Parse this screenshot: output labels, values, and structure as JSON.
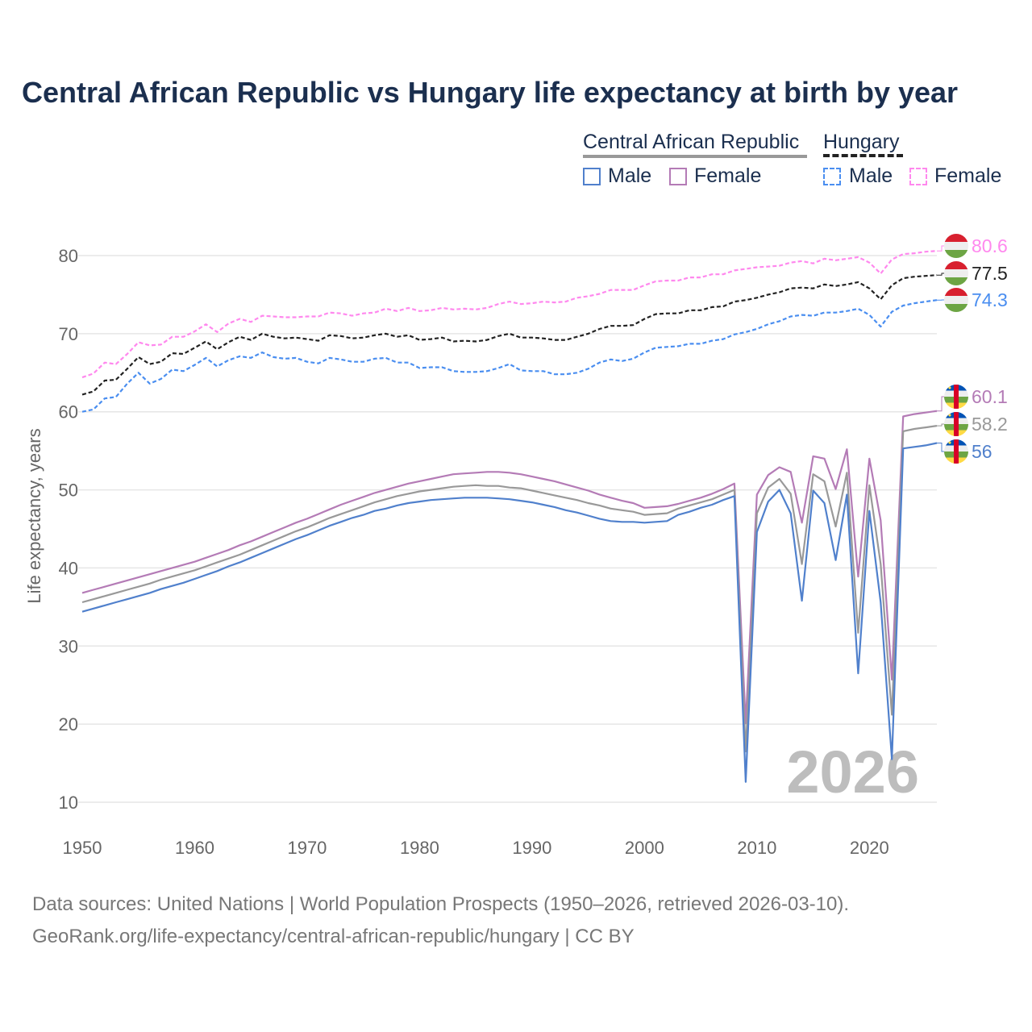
{
  "title": "Central African Republic vs Hungary life expectancy at birth by year",
  "legend": {
    "group1": "Central African Republic",
    "group2": "Hungary",
    "male": "Male",
    "female": "Female"
  },
  "footer": {
    "line1": "Data sources: United Nations | World Population Prospects (1950–2026, retrieved 2026-03-10).",
    "line2": "GeoRank.org/life-expectancy/central-african-republic/hungary | CC BY"
  },
  "colors": {
    "car_male": "#5080cc",
    "car_female": "#b47bb6",
    "car_total": "#999999",
    "hun_male": "#4a8ef0",
    "hun_female": "#ff88ee",
    "hun_total": "#222222",
    "title": "#1b2f4f"
  },
  "chart_data": {
    "type": "line",
    "title": "Central African Republic vs Hungary life expectancy at birth by year",
    "xlabel": "",
    "ylabel": "Life expectancy, years",
    "xlim": [
      1950,
      2026
    ],
    "ylim": [
      10,
      80
    ],
    "x_ticks": [
      1950,
      1960,
      1970,
      1980,
      1990,
      2000,
      2010,
      2020
    ],
    "y_ticks": [
      10,
      20,
      30,
      40,
      50,
      60,
      70,
      80
    ],
    "grid": true,
    "watermark": "2026",
    "x_start": 1950,
    "series": [
      {
        "name": "Hungary Female",
        "country": "Hungary",
        "style": "dashed",
        "colorKey": "hun_female",
        "end_label": "80.6",
        "values": [
          64.4,
          64.9,
          66.3,
          66.1,
          67.4,
          68.9,
          68.5,
          68.6,
          69.6,
          69.6,
          70.3,
          71.2,
          70.2,
          71.3,
          71.9,
          71.5,
          72.3,
          72.2,
          72.1,
          72.1,
          72.2,
          72.2,
          72.7,
          72.6,
          72.3,
          72.6,
          72.7,
          73.2,
          72.9,
          73.3,
          72.9,
          73.0,
          73.3,
          73.1,
          73.2,
          73.1,
          73.3,
          73.8,
          74.1,
          73.8,
          73.9,
          74.1,
          74.0,
          74.1,
          74.6,
          74.8,
          75.1,
          75.6,
          75.6,
          75.6,
          76.2,
          76.7,
          76.8,
          76.8,
          77.2,
          77.2,
          77.6,
          77.6,
          78.1,
          78.3,
          78.5,
          78.6,
          78.7,
          79.1,
          79.3,
          79.0,
          79.6,
          79.4,
          79.6,
          79.8,
          79.1,
          77.7,
          79.5,
          80.2,
          80.3,
          80.5,
          80.6
        ]
      },
      {
        "name": "Hungary Total",
        "country": "Hungary",
        "style": "dashed",
        "colorKey": "hun_total",
        "end_label": "77.5",
        "values": [
          62.2,
          62.6,
          64.0,
          64.1,
          65.5,
          67.0,
          66.1,
          66.4,
          67.5,
          67.4,
          68.2,
          69.0,
          68.0,
          68.9,
          69.6,
          69.2,
          70.0,
          69.6,
          69.4,
          69.5,
          69.3,
          69.1,
          69.8,
          69.7,
          69.4,
          69.5,
          69.8,
          70.0,
          69.6,
          69.8,
          69.2,
          69.3,
          69.5,
          69.0,
          69.1,
          69.0,
          69.2,
          69.7,
          70.0,
          69.5,
          69.5,
          69.4,
          69.2,
          69.2,
          69.6,
          70.0,
          70.6,
          71.0,
          71.0,
          71.1,
          71.9,
          72.5,
          72.6,
          72.6,
          73.0,
          73.0,
          73.4,
          73.5,
          74.1,
          74.3,
          74.6,
          75.0,
          75.3,
          75.8,
          75.9,
          75.8,
          76.3,
          76.1,
          76.3,
          76.6,
          75.8,
          74.4,
          76.2,
          77.1,
          77.3,
          77.4,
          77.5
        ]
      },
      {
        "name": "Hungary Male",
        "country": "Hungary",
        "style": "dashed",
        "colorKey": "hun_male",
        "end_label": "74.3",
        "values": [
          60.0,
          60.3,
          61.7,
          61.9,
          63.6,
          65.0,
          63.6,
          64.2,
          65.4,
          65.2,
          66.0,
          66.9,
          65.8,
          66.6,
          67.1,
          66.9,
          67.6,
          67.0,
          66.8,
          66.9,
          66.4,
          66.2,
          66.9,
          66.7,
          66.4,
          66.4,
          66.8,
          66.9,
          66.3,
          66.3,
          65.6,
          65.7,
          65.7,
          65.2,
          65.1,
          65.1,
          65.2,
          65.6,
          66.1,
          65.3,
          65.2,
          65.2,
          64.8,
          64.8,
          65.0,
          65.5,
          66.3,
          66.7,
          66.5,
          66.8,
          67.6,
          68.2,
          68.3,
          68.4,
          68.7,
          68.7,
          69.1,
          69.3,
          69.9,
          70.2,
          70.6,
          71.2,
          71.6,
          72.2,
          72.4,
          72.3,
          72.7,
          72.7,
          72.9,
          73.2,
          72.4,
          70.9,
          72.8,
          73.6,
          73.9,
          74.1,
          74.3
        ]
      },
      {
        "name": "Central African Republic Female",
        "country": "CAR",
        "style": "solid",
        "colorKey": "car_female",
        "end_label": "60.1",
        "values": [
          36.8,
          37.2,
          37.6,
          38.0,
          38.4,
          38.8,
          39.2,
          39.6,
          40.0,
          40.4,
          40.8,
          41.3,
          41.8,
          42.3,
          42.9,
          43.4,
          44.0,
          44.6,
          45.2,
          45.8,
          46.3,
          46.9,
          47.5,
          48.1,
          48.6,
          49.1,
          49.6,
          50.0,
          50.4,
          50.8,
          51.1,
          51.4,
          51.7,
          52.0,
          52.1,
          52.2,
          52.3,
          52.3,
          52.2,
          52.0,
          51.7,
          51.4,
          51.1,
          50.7,
          50.3,
          49.9,
          49.4,
          49.0,
          48.6,
          48.3,
          47.7,
          47.8,
          47.9,
          48.2,
          48.6,
          49.0,
          49.5,
          50.1,
          50.8,
          20.1,
          49.4,
          51.9,
          52.9,
          52.3,
          45.8,
          54.3,
          54.0,
          50.1,
          55.2,
          38.9,
          54.0,
          46.1,
          25.7,
          59.4,
          59.7,
          59.9,
          60.1
        ]
      },
      {
        "name": "Central African Republic Total",
        "country": "CAR",
        "style": "solid",
        "colorKey": "car_total",
        "end_label": "58.2",
        "values": [
          35.6,
          36.0,
          36.4,
          36.8,
          37.2,
          37.6,
          38.0,
          38.5,
          38.9,
          39.3,
          39.7,
          40.2,
          40.7,
          41.2,
          41.7,
          42.3,
          42.9,
          43.5,
          44.1,
          44.7,
          45.2,
          45.8,
          46.4,
          46.9,
          47.4,
          47.9,
          48.4,
          48.8,
          49.2,
          49.5,
          49.8,
          50.0,
          50.2,
          50.4,
          50.5,
          50.6,
          50.5,
          50.5,
          50.3,
          50.2,
          49.9,
          49.6,
          49.3,
          49.0,
          48.7,
          48.3,
          48.0,
          47.6,
          47.4,
          47.2,
          46.8,
          46.9,
          47.0,
          47.6,
          48.0,
          48.4,
          48.8,
          49.4,
          50.0,
          16.5,
          47.0,
          50.3,
          51.4,
          49.5,
          40.5,
          52.0,
          51.1,
          45.3,
          52.2,
          31.7,
          50.6,
          40.5,
          21.2,
          57.5,
          57.8,
          58.0,
          58.2
        ]
      },
      {
        "name": "Central African Republic Male",
        "country": "CAR",
        "style": "solid",
        "colorKey": "car_male",
        "end_label": "56",
        "values": [
          34.4,
          34.8,
          35.2,
          35.6,
          36.0,
          36.4,
          36.8,
          37.3,
          37.7,
          38.1,
          38.6,
          39.1,
          39.6,
          40.2,
          40.7,
          41.3,
          41.9,
          42.5,
          43.1,
          43.7,
          44.2,
          44.8,
          45.4,
          45.9,
          46.4,
          46.8,
          47.3,
          47.6,
          48.0,
          48.3,
          48.5,
          48.7,
          48.8,
          48.9,
          49.0,
          49.0,
          49.0,
          48.9,
          48.8,
          48.6,
          48.4,
          48.1,
          47.8,
          47.4,
          47.1,
          46.7,
          46.3,
          46.0,
          45.9,
          45.9,
          45.8,
          45.9,
          46.0,
          46.8,
          47.2,
          47.7,
          48.1,
          48.7,
          49.2,
          12.6,
          44.6,
          48.5,
          50.0,
          47.0,
          35.8,
          49.9,
          48.3,
          41.0,
          49.4,
          26.5,
          47.3,
          35.6,
          15.5,
          55.3,
          55.5,
          55.7,
          56.0
        ]
      }
    ]
  }
}
